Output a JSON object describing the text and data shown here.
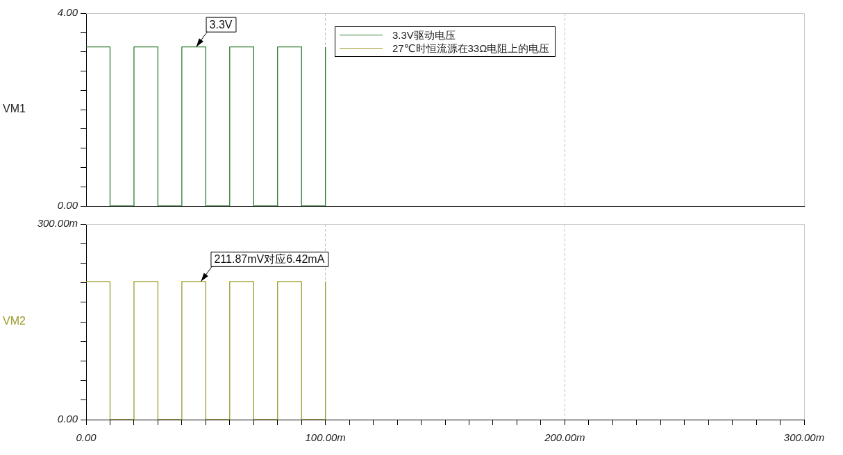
{
  "chart_data": [
    {
      "type": "step",
      "ylabel": "VM1",
      "legend": "top",
      "grid": "x",
      "tick_labels": "y",
      "line_style": "solid",
      "marker": "none",
      "x": [
        0,
        10,
        20,
        30,
        40,
        50,
        60,
        70,
        80,
        90,
        100
      ],
      "series": [
        {
          "name": "3.3V驱动电压",
          "color": "#2f7a2f",
          "values": [
            3.3,
            0,
            3.3,
            0,
            3.3,
            0,
            3.3,
            0,
            3.3,
            0,
            3.3
          ]
        }
      ],
      "xlim": [
        0,
        300
      ],
      "xticks": [
        0,
        100,
        200,
        300
      ],
      "ylim": [
        0,
        4
      ],
      "yticks": [
        {
          "value": 0,
          "label": "0.00"
        },
        {
          "value": 0.4,
          "label": null
        },
        {
          "value": 0.8,
          "label": null
        },
        {
          "value": 1.2,
          "label": null
        },
        {
          "value": 1.6,
          "label": null
        },
        {
          "value": 2,
          "label": null
        },
        {
          "value": 2.4,
          "label": null
        },
        {
          "value": 2.8,
          "label": null
        },
        {
          "value": 3.2,
          "label": null
        },
        {
          "value": 3.6,
          "label": null
        },
        {
          "value": 4,
          "label": "4.00"
        }
      ],
      "annotations": [
        {
          "text": "3.3V",
          "x": 46,
          "y": 3.3
        }
      ]
    },
    {
      "type": "step",
      "ylabel": "VM2",
      "grid": "x",
      "line_style": "solid",
      "marker": "none",
      "x": [
        0,
        10,
        20,
        30,
        40,
        50,
        60,
        70,
        80,
        90,
        100
      ],
      "series": [
        {
          "name": "27℃时恒流源在33Ω电阻上的电压",
          "color": "#9c9c2c",
          "values": [
            211.87,
            0,
            211.87,
            0,
            211.87,
            0,
            211.87,
            0,
            211.87,
            0,
            211.87
          ]
        }
      ],
      "xlim": [
        0,
        300
      ],
      "xticks": [
        {
          "value": 0,
          "label": "0.00"
        },
        {
          "value": 10,
          "label": null
        },
        {
          "value": 20,
          "label": null
        },
        {
          "value": 30,
          "label": null
        },
        {
          "value": 40,
          "label": null
        },
        {
          "value": 50,
          "label": null
        },
        {
          "value": 60,
          "label": null
        },
        {
          "value": 70,
          "label": null
        },
        {
          "value": 80,
          "label": null
        },
        {
          "value": 90,
          "label": null
        },
        {
          "value": 100,
          "label": "100.00m"
        },
        {
          "value": 110,
          "label": null
        },
        {
          "value": 120,
          "label": null
        },
        {
          "value": 130,
          "label": null
        },
        {
          "value": 140,
          "label": null
        },
        {
          "value": 150,
          "label": null
        },
        {
          "value": 160,
          "label": null
        },
        {
          "value": 170,
          "label": null
        },
        {
          "value": 180,
          "label": null
        },
        {
          "value": 190,
          "label": null
        },
        {
          "value": 200,
          "label": "200.00m"
        },
        {
          "value": 210,
          "label": null
        },
        {
          "value": 220,
          "label": null
        },
        {
          "value": 230,
          "label": null
        },
        {
          "value": 240,
          "label": null
        },
        {
          "value": 250,
          "label": null
        },
        {
          "value": 260,
          "label": null
        },
        {
          "value": 270,
          "label": null
        },
        {
          "value": 280,
          "label": null
        },
        {
          "value": 290,
          "label": null
        },
        {
          "value": 300,
          "label": "300.00m"
        }
      ],
      "ylim": [
        0,
        300
      ],
      "yticks": [
        {
          "value": 0,
          "label": "0.00"
        },
        {
          "value": 30,
          "label": null
        },
        {
          "value": 60,
          "label": null
        },
        {
          "value": 90,
          "label": null
        },
        {
          "value": 120,
          "label": null
        },
        {
          "value": 150,
          "label": null
        },
        {
          "value": 180,
          "label": null
        },
        {
          "value": 210,
          "label": null
        },
        {
          "value": 240,
          "label": null
        },
        {
          "value": 270,
          "label": null
        },
        {
          "value": 300,
          "label": "300.00m"
        }
      ],
      "annotations": [
        {
          "text": "211.87mV对应6.42mA",
          "x": 48,
          "y": 211.87
        }
      ]
    }
  ]
}
